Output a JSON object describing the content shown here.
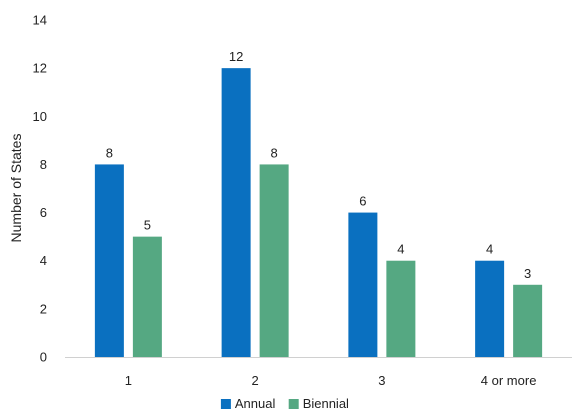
{
  "chart_data": {
    "type": "bar",
    "categories": [
      "1",
      "2",
      "3",
      "4 or more"
    ],
    "series": [
      {
        "name": "Annual",
        "values": [
          8,
          12,
          6,
          4
        ],
        "color": "#0A70C0"
      },
      {
        "name": "Biennial",
        "values": [
          5,
          8,
          4,
          3
        ],
        "color": "#55A882"
      }
    ],
    "ylabel": "Number of States",
    "xlabel": "",
    "ylim": [
      0,
      14
    ],
    "yticks": [
      "0",
      "2",
      "4",
      "6",
      "8",
      "10",
      "12",
      "14"
    ],
    "grid": false,
    "legend_position": "bottom"
  }
}
